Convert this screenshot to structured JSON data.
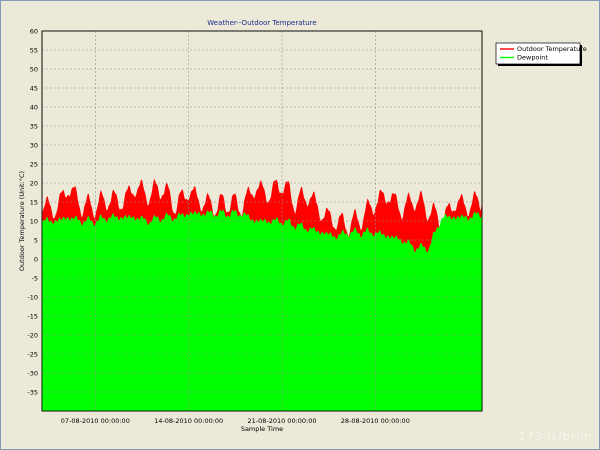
{
  "chart_data": {
    "type": "area",
    "title": "Weather--Outdoor Temperature",
    "xlabel": "Sample Time",
    "ylabel": "Outdoor Temperature (Unit:°C)",
    "ylim": [
      -40,
      60
    ],
    "yticks": [
      60,
      55,
      50,
      45,
      40,
      35,
      30,
      25,
      20,
      15,
      10,
      5,
      0,
      -5,
      -10,
      -15,
      -20,
      -25,
      -30,
      -35
    ],
    "xlim": [
      "2010-08-03",
      "2010-09-05"
    ],
    "xticks": [
      {
        "value": "2010-08-07",
        "label": "07-08-2010 00:00:00"
      },
      {
        "value": "2010-08-14",
        "label": "14-08-2010 00:00:00"
      },
      {
        "value": "2010-08-21",
        "label": "21-08-2010 00:00:00"
      },
      {
        "value": "2010-08-28",
        "label": "28-08-2010 00:00:00"
      }
    ],
    "grid": true,
    "legend_position": "top-right",
    "series": [
      {
        "name": "Outdoor Temperature",
        "color": "#ff0000",
        "x": [
          "2010-08-03",
          "2010-08-04",
          "2010-08-05",
          "2010-08-06",
          "2010-08-07",
          "2010-08-08",
          "2010-08-09",
          "2010-08-10",
          "2010-08-11",
          "2010-08-12",
          "2010-08-13",
          "2010-08-14",
          "2010-08-15",
          "2010-08-16",
          "2010-08-17",
          "2010-08-18",
          "2010-08-19",
          "2010-08-20",
          "2010-08-21",
          "2010-08-22",
          "2010-08-23",
          "2010-08-24",
          "2010-08-25",
          "2010-08-26",
          "2010-08-27",
          "2010-08-28",
          "2010-08-29",
          "2010-08-30",
          "2010-08-31",
          "2010-09-01",
          "2010-09-02",
          "2010-09-03",
          "2010-09-04",
          "2010-09-05"
        ],
        "values": [
          14,
          13,
          19,
          14,
          14,
          16,
          15,
          19,
          17,
          19,
          14,
          18,
          15,
          14,
          15,
          14,
          19,
          17,
          20,
          15,
          17,
          12,
          10,
          9,
          11,
          15,
          17,
          13,
          16,
          13,
          10,
          15,
          14,
          16
        ]
      },
      {
        "name": "Dewpoint",
        "color": "#00ff00",
        "x": [
          "2010-08-03",
          "2010-08-04",
          "2010-08-05",
          "2010-08-06",
          "2010-08-07",
          "2010-08-08",
          "2010-08-09",
          "2010-08-10",
          "2010-08-11",
          "2010-08-12",
          "2010-08-13",
          "2010-08-14",
          "2010-08-15",
          "2010-08-16",
          "2010-08-17",
          "2010-08-18",
          "2010-08-19",
          "2010-08-20",
          "2010-08-21",
          "2010-08-22",
          "2010-08-23",
          "2010-08-24",
          "2010-08-25",
          "2010-08-26",
          "2010-08-27",
          "2010-08-28",
          "2010-08-29",
          "2010-08-30",
          "2010-08-31",
          "2010-09-01",
          "2010-09-02",
          "2010-09-03",
          "2010-09-04",
          "2010-09-05"
        ],
        "values": [
          10,
          10,
          11,
          10,
          10,
          11,
          11,
          11,
          10,
          11,
          11,
          12,
          12,
          12,
          12,
          12,
          10,
          10,
          10,
          9,
          8,
          7,
          6,
          7,
          7,
          7,
          6,
          5,
          3,
          3,
          11,
          11,
          11,
          12
        ]
      }
    ]
  },
  "watermark": "173.is/brim",
  "colors": {
    "background": "#ece9d8",
    "plot_bg": "#ece9d8",
    "grid": "#8f8f8f",
    "title": "#1a2f8c"
  }
}
